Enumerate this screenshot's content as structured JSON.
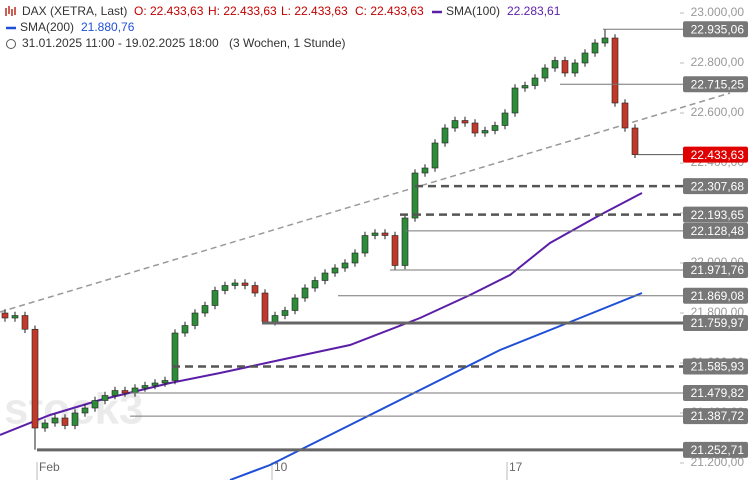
{
  "chart_data": {
    "type": "candlestick",
    "title": "DAX (XETRA, Last)",
    "ohlc_labels": [
      "O: 22.433,63",
      "H: 22.433,63",
      "L: 22.433,63",
      "C: 22.433,63"
    ],
    "range_label": "31.01.2025 11:00 - 19.02.2025 18:00",
    "period_label": "(3 Wochen, 1 Stunde)",
    "watermark": "stock3",
    "colors": {
      "up": "#2e8b3a",
      "down": "#c0392b"
    },
    "open": [
      21800,
      21780,
      21790,
      21735,
      21340,
      21360,
      21380,
      21350,
      21400,
      21420,
      21450,
      21470,
      21490,
      21480,
      21500,
      21510,
      21520,
      21530,
      21720,
      21750,
      21800,
      21830,
      21890,
      21910,
      21920,
      21910,
      21880,
      21765,
      21790,
      21810,
      21860,
      21900,
      21930,
      21960,
      21980,
      22000,
      22040,
      22110,
      22120,
      22110,
      21990,
      22180,
      22360,
      22380,
      22480,
      22540,
      22570,
      22560,
      22520,
      22530,
      22550,
      22600,
      22700,
      22710,
      22740,
      22780,
      22810,
      22760,
      22800,
      22840,
      22880,
      22900,
      22640,
      22540
    ],
    "high": [
      21815,
      21805,
      21805,
      21750,
      21375,
      21395,
      21395,
      21415,
      21435,
      21465,
      21485,
      21505,
      21505,
      21515,
      21525,
      21535,
      21545,
      21735,
      21765,
      21815,
      21845,
      21905,
      21925,
      21935,
      21935,
      21925,
      21895,
      21805,
      21825,
      21875,
      21915,
      21945,
      21975,
      21995,
      22015,
      22055,
      22125,
      22135,
      22135,
      22125,
      22195,
      22375,
      22395,
      22495,
      22555,
      22585,
      22585,
      22575,
      22545,
      22565,
      22615,
      22715,
      22725,
      22755,
      22795,
      22825,
      22825,
      22815,
      22855,
      22895,
      22935,
      22915,
      22655,
      22555
    ],
    "low": [
      21765,
      21765,
      21720,
      21253,
      21325,
      21345,
      21335,
      21335,
      21385,
      21405,
      21435,
      21455,
      21465,
      21465,
      21485,
      21495,
      21505,
      21515,
      21705,
      21735,
      21785,
      21815,
      21875,
      21895,
      21895,
      21865,
      21760,
      21750,
      21775,
      21795,
      21845,
      21885,
      21915,
      21945,
      21965,
      21985,
      22025,
      22095,
      22095,
      21972,
      21975,
      22165,
      22345,
      22365,
      22465,
      22525,
      22545,
      22505,
      22505,
      22515,
      22535,
      22585,
      22685,
      22695,
      22725,
      22765,
      22745,
      22745,
      22785,
      22825,
      22865,
      22625,
      22525,
      22420
    ],
    "close": [
      21780,
      21790,
      21735,
      21340,
      21360,
      21380,
      21350,
      21400,
      21420,
      21450,
      21470,
      21490,
      21480,
      21500,
      21510,
      21520,
      21530,
      21720,
      21750,
      21800,
      21830,
      21890,
      21910,
      21920,
      21910,
      21880,
      21765,
      21790,
      21810,
      21860,
      21900,
      21930,
      21960,
      21980,
      22000,
      22040,
      22110,
      22120,
      22110,
      21990,
      22180,
      22360,
      22380,
      22480,
      22540,
      22570,
      22560,
      22520,
      22530,
      22550,
      22600,
      22700,
      22710,
      22740,
      22780,
      22810,
      22760,
      22800,
      22840,
      22880,
      22900,
      22640,
      22540,
      22433.63
    ],
    "series": [
      {
        "name": "SMA(100)",
        "last_label": "22.283,61",
        "color": "#5b1ea8",
        "x": [
          -0.5,
          4.5,
          9.5,
          16.5,
          21.5,
          27.5,
          34.5,
          41.5,
          46.5,
          50.5,
          54.5,
          59.5,
          63.7
        ],
        "values": [
          21312,
          21392,
          21452,
          21520,
          21560,
          21612,
          21672,
          21780,
          21872,
          21952,
          22080,
          22192,
          22280
        ]
      },
      {
        "name": "SMA(200)",
        "last_label": "21.880,76",
        "color": "#1f4fd8",
        "x": [
          22.5,
          26.5,
          34.5,
          41.5,
          49.5,
          57.5,
          63.7
        ],
        "values": [
          21132,
          21192,
          21352,
          21492,
          21652,
          21780,
          21880
        ]
      }
    ],
    "trendline": {
      "color": "#999999",
      "x": [
        -0.5,
        72.5
      ],
      "values": [
        21804,
        22680
      ]
    },
    "levels": [
      {
        "value": 22935.06,
        "label": "22.935,06",
        "style": "thin",
        "from": 59.8
      },
      {
        "value": 22715.25,
        "label": "22.715,25",
        "style": "thin",
        "from": 55.5
      },
      {
        "value": 22433.63,
        "label": "22.433,63",
        "style": "current",
        "from": 63.2
      },
      {
        "value": 22307.68,
        "label": "22.307,68",
        "style": "dashed",
        "from": 41
      },
      {
        "value": 22193.65,
        "label": "22.193,65",
        "style": "dashed",
        "from": 39.5
      },
      {
        "value": 22128.48,
        "label": "22.128,48",
        "style": "thin",
        "from": 40
      },
      {
        "value": 21971.76,
        "label": "21.971,76",
        "style": "thin",
        "from": 38.5
      },
      {
        "value": 21869.08,
        "label": "21.869,08",
        "style": "thin",
        "from": 33.3
      },
      {
        "value": 21759.97,
        "label": "21.759,97",
        "style": "thick",
        "from": 25.7
      },
      {
        "value": 21585.93,
        "label": "21.585,93",
        "style": "dashed",
        "from": 16.7
      },
      {
        "value": 21479.82,
        "label": "21.479,82",
        "style": "thin",
        "from": 12.5
      },
      {
        "value": 21387.72,
        "label": "21.387,72",
        "style": "thin",
        "from": 12.5
      },
      {
        "value": 21252.71,
        "label": "21.252,71",
        "style": "thick",
        "from": 3.2
      }
    ],
    "xlim": [
      -0.5,
      67.5
    ],
    "xticks": [
      {
        "value": 3.2,
        "label": "Feb"
      },
      {
        "value": 26.7,
        "label": "10"
      },
      {
        "value": 50.2,
        "label": "17"
      }
    ],
    "ylim": [
      21132,
      23052
    ],
    "yticks": [
      {
        "value": 21200,
        "label": "21.200,00"
      },
      {
        "value": 21400,
        "label": "21.400,00"
      },
      {
        "value": 21600,
        "label": "21.600,00"
      },
      {
        "value": 21800,
        "label": "21.800,00"
      },
      {
        "value": 22000,
        "label": "22.000,00"
      },
      {
        "value": 22200,
        "label": "22.200,00"
      },
      {
        "value": 22400,
        "label": "22.400,00"
      },
      {
        "value": 22600,
        "label": "22.600,00"
      },
      {
        "value": 22800,
        "label": "22.800,00"
      },
      {
        "value": 23000,
        "label": "23.000,00"
      }
    ]
  }
}
